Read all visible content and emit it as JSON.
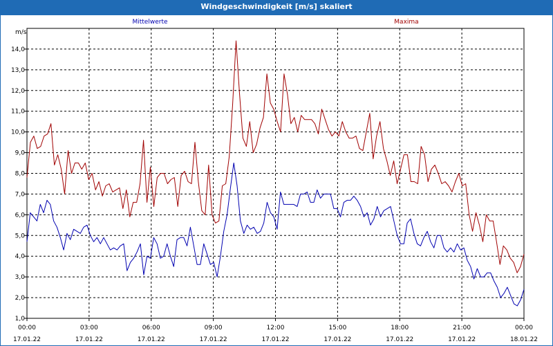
{
  "window": {
    "title": "Windgeschwindigkeit [m/s] skaliert"
  },
  "colors": {
    "titlebar": "#1f6bb5",
    "mittel": "#0000b0",
    "maxima": "#a00000",
    "grid": "#000000"
  },
  "chart_data": {
    "type": "line",
    "ylabel": "m/s",
    "ylim": [
      1.0,
      15.0
    ],
    "yticks": [
      "1,0",
      "2,0",
      "3,0",
      "4,0",
      "5,0",
      "6,0",
      "7,0",
      "8,0",
      "9,0",
      "10,0",
      "11,0",
      "12,0",
      "13,0",
      "14,0"
    ],
    "xlim_hours": [
      0,
      24
    ],
    "xticks": [
      {
        "time": "00:00",
        "date": "17.01.22"
      },
      {
        "time": "03:00",
        "date": "17.01.22"
      },
      {
        "time": "06:00",
        "date": "17.01.22"
      },
      {
        "time": "09:00",
        "date": "17.01.22"
      },
      {
        "time": "12:00",
        "date": "17.01.22"
      },
      {
        "time": "15:00",
        "date": "17.01.22"
      },
      {
        "time": "18:00",
        "date": "17.01.22"
      },
      {
        "time": "21:00",
        "date": "17.01.22"
      },
      {
        "time": "00:00",
        "date": "18.01.22"
      }
    ],
    "grid": true,
    "series": [
      {
        "name": "Mittelwerte",
        "color": "#0000b0",
        "values": [
          4.7,
          6.1,
          5.9,
          5.7,
          6.5,
          6.1,
          6.7,
          6.5,
          5.7,
          5.4,
          4.9,
          4.3,
          5.1,
          4.8,
          5.3,
          5.2,
          5.1,
          5.4,
          5.5,
          5.0,
          4.7,
          4.9,
          4.6,
          4.9,
          4.6,
          4.3,
          4.4,
          4.3,
          4.5,
          4.6,
          3.3,
          3.7,
          3.9,
          4.2,
          4.6,
          3.1,
          4.0,
          3.9,
          4.9,
          4.6,
          3.9,
          4.0,
          4.6,
          4.0,
          3.5,
          4.8,
          4.9,
          4.9,
          4.5,
          5.4,
          4.5,
          3.6,
          3.6,
          4.6,
          4.1,
          3.6,
          3.7,
          3.0,
          4.0,
          5.2,
          6.0,
          7.3,
          8.5,
          7.4,
          5.7,
          5.1,
          5.5,
          5.3,
          5.4,
          5.1,
          5.2,
          5.6,
          6.6,
          6.1,
          5.9,
          5.3,
          7.1,
          6.5,
          6.5,
          6.5,
          6.5,
          6.4,
          7.0,
          7.0,
          7.1,
          6.6,
          6.6,
          7.2,
          6.8,
          7.0,
          7.0,
          7.0,
          6.3,
          6.3,
          5.9,
          6.6,
          6.7,
          6.7,
          6.9,
          6.7,
          6.4,
          5.9,
          6.1,
          5.5,
          5.8,
          6.4,
          5.9,
          6.2,
          6.3,
          6.4,
          5.7,
          5.0,
          4.6,
          4.6,
          5.6,
          5.8,
          5.1,
          4.6,
          4.5,
          4.9,
          5.2,
          4.7,
          4.4,
          5.0,
          5.0,
          4.4,
          4.2,
          4.4,
          4.2,
          4.6,
          4.3,
          4.4,
          3.8,
          3.5,
          2.9,
          3.4,
          3.0,
          3.0,
          3.2,
          3.2,
          2.8,
          2.5,
          2.0,
          2.2,
          2.5,
          2.1,
          1.7,
          1.6,
          1.9,
          2.4
        ]
      },
      {
        "name": "Maxima",
        "color": "#a00000",
        "values": [
          7.8,
          9.5,
          9.8,
          9.2,
          9.3,
          9.8,
          9.9,
          10.4,
          8.4,
          8.9,
          8.2,
          7.0,
          9.1,
          8.0,
          8.5,
          8.5,
          8.2,
          8.5,
          7.7,
          8.0,
          7.2,
          7.6,
          6.9,
          7.4,
          7.5,
          7.1,
          7.2,
          7.3,
          6.3,
          7.2,
          5.9,
          6.6,
          6.6,
          7.5,
          9.6,
          6.6,
          8.3,
          6.4,
          7.8,
          8.0,
          8.0,
          7.5,
          7.7,
          7.8,
          6.4,
          7.9,
          8.1,
          7.6,
          7.5,
          9.5,
          7.6,
          6.2,
          6.0,
          8.4,
          6.0,
          5.6,
          5.7,
          7.4,
          7.5,
          8.8,
          11.3,
          14.4,
          11.9,
          9.7,
          9.3,
          10.5,
          9.0,
          9.4,
          10.2,
          10.7,
          12.8,
          11.4,
          11.1,
          10.5,
          10.0,
          12.8,
          11.8,
          10.4,
          10.7,
          10.0,
          10.8,
          10.6,
          10.6,
          10.6,
          10.4,
          9.9,
          11.1,
          10.6,
          10.1,
          9.8,
          10.0,
          9.8,
          10.5,
          10.0,
          9.7,
          9.7,
          9.8,
          9.2,
          9.1,
          10.0,
          10.9,
          8.7,
          9.8,
          10.5,
          9.2,
          8.6,
          7.9,
          8.6,
          7.5,
          8.2,
          8.9,
          8.9,
          7.6,
          7.6,
          7.5,
          9.3,
          8.9,
          7.6,
          8.2,
          8.4,
          8.0,
          7.5,
          7.6,
          7.4,
          7.1,
          7.6,
          8.0,
          7.4,
          7.5,
          6.0,
          5.2,
          6.1,
          5.5,
          4.7,
          6.0,
          5.7,
          5.7,
          4.7,
          3.6,
          4.5,
          4.3,
          3.9,
          3.7,
          3.2,
          3.5,
          4.1
        ]
      }
    ]
  }
}
